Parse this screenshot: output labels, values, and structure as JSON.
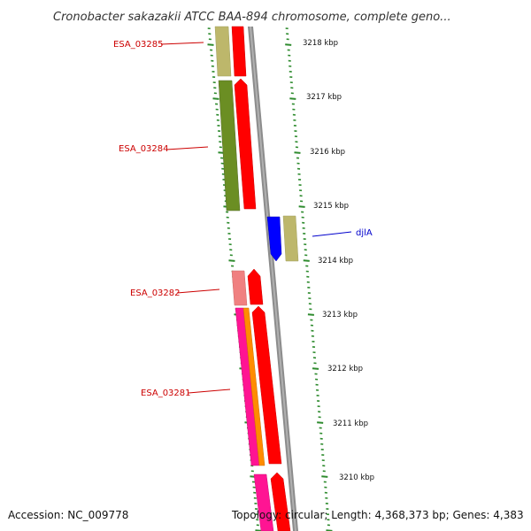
{
  "title": "Cronobacter sakazakii ATCC BAA-894 chromosome, complete geno...",
  "footer": {
    "accession": "Accession: NC_009778",
    "summary": "Topology: circular; Length: 4,368,373 bp; Genes: 4,383"
  },
  "kbp_labels": [
    "3218 kbp",
    "3217 kbp",
    "3216 kbp",
    "3215 kbp",
    "3214 kbp",
    "3213 kbp",
    "3212 kbp",
    "3211 kbp",
    "3210 kbp"
  ],
  "gene_labels": [
    {
      "text": "ESA_03285",
      "color": "#cc0000"
    },
    {
      "text": "ESA_03284",
      "color": "#cc0000"
    },
    {
      "text": "djlA",
      "color": "#0000cc"
    },
    {
      "text": "ESA_03282",
      "color": "#cc0000"
    },
    {
      "text": "ESA_03281",
      "color": "#cc0000"
    }
  ],
  "colors": {
    "backbone": "#8c8c8c",
    "tick": "#2e8b2e",
    "cds_red": "#ff0000",
    "khaki": "#bdb76b",
    "olive": "#6b8e23",
    "blue": "#0000ff",
    "salmon": "#f08080",
    "pink": "#ff1493",
    "orange": "#ff8c00"
  }
}
